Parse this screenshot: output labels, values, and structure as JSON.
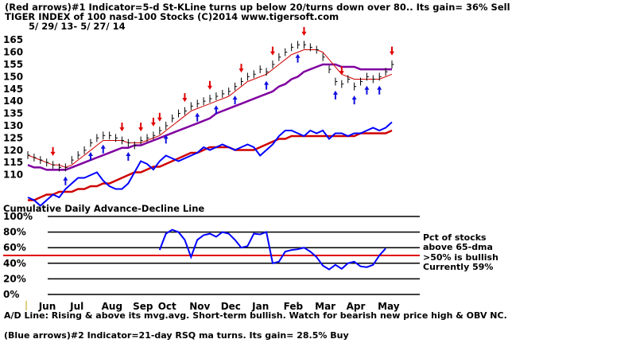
{
  "header": {
    "line1": "(Red arrows)#1 Indicator=5-d St-KLine turns up below 20/turns down over 80.. Its gain= 36% Sell",
    "line2": "TIGER INDEX of  100 nasd-100 Stocks  (C)2014  www.tigersoft.com",
    "line3": "5/ 29/ 13-  5/ 27/ 14"
  },
  "footer": {
    "line1": "A/D Line: Rising & above its mvg.avg. Short-term bullish. Watch for bearish new price high & OBV NC.",
    "line2": "(Blue arrows)#2 Indicator=21-day RSQ ma turns. Its gain= 28.5% Buy"
  },
  "colors": {
    "price": "#000000",
    "ma_short": "#d00000",
    "ma_long": "#8000a0",
    "ad_line": "#0000ff",
    "ad_ma": "#d00000",
    "pct": "#0000ff",
    "threshold": "#e00000",
    "sell_arrow": "#e00000",
    "buy_arrow": "#1010e0",
    "grid": "#000000"
  },
  "chart_data": [
    {
      "type": "line",
      "title": "TIGER INDEX of  100 nasd-100 Stocks  (C)2014  www.tigersoft.com",
      "ylim": [
        105,
        167
      ],
      "yticks": [
        110,
        115,
        120,
        125,
        130,
        135,
        140,
        145,
        150,
        155,
        160,
        165
      ],
      "grid": false,
      "series": [
        {
          "values": [
            118,
            117,
            116,
            115,
            114,
            113,
            113,
            116,
            118,
            120,
            123,
            125,
            126,
            126,
            125,
            124,
            123,
            122,
            124,
            125,
            126,
            128,
            130,
            133,
            135,
            136,
            138,
            139,
            140,
            141,
            142,
            143,
            144,
            146,
            148,
            150,
            151,
            153,
            152,
            155,
            158,
            160,
            162,
            163,
            163,
            162,
            161,
            158,
            153,
            148,
            147,
            149,
            146,
            148,
            150,
            149,
            150,
            152,
            155
          ]
        },
        {
          "values": [
            118,
            117,
            116,
            115,
            114,
            114,
            113,
            114,
            116,
            118,
            120,
            122,
            124,
            124,
            124,
            124,
            123,
            123,
            123,
            124,
            125,
            126,
            128,
            130,
            132,
            134,
            136,
            137,
            138,
            139,
            140,
            141,
            142,
            144,
            146,
            148,
            149,
            150,
            151,
            153,
            155,
            157,
            159,
            160,
            161,
            161,
            161,
            160,
            157,
            154,
            151,
            150,
            149,
            149,
            149,
            149,
            149,
            150,
            151
          ]
        },
        {
          "values": [
            114,
            113,
            113,
            112,
            112,
            112,
            112,
            113,
            114,
            115,
            116,
            117,
            118,
            119,
            120,
            121,
            121,
            122,
            122,
            123,
            124,
            125,
            126,
            127,
            128,
            129,
            130,
            131,
            132,
            133,
            135,
            136,
            137,
            138,
            139,
            140,
            141,
            142,
            143,
            144,
            146,
            147,
            149,
            150,
            152,
            153,
            154,
            155,
            155,
            155,
            154,
            154,
            154,
            153,
            153,
            153,
            153,
            153,
            153
          ]
        }
      ],
      "sell_arrows": [
        4,
        15,
        18,
        20,
        21,
        25,
        29,
        34,
        39,
        44,
        50,
        58
      ],
      "buy_arrows": [
        6,
        10,
        12,
        16,
        22,
        27,
        30,
        33,
        38,
        43,
        49,
        52,
        54,
        56
      ],
      "xlabel": ""
    },
    {
      "type": "line",
      "title": "Cumulative Daily Advance-Decline Line",
      "series": [
        {
          "values": [
            107,
            106,
            104,
            106,
            108,
            107,
            110,
            112,
            114,
            114,
            115,
            116,
            113,
            111,
            110,
            110,
            112,
            116,
            120,
            119,
            117,
            120,
            122,
            121,
            120,
            121,
            122,
            123,
            125,
            124,
            125,
            126,
            125,
            124,
            125,
            126,
            125,
            122,
            124,
            126,
            129,
            131,
            131,
            130,
            129,
            131,
            130,
            131,
            128,
            130,
            130,
            129,
            130,
            130,
            131,
            132,
            131,
            132,
            134
          ]
        },
        {
          "values": [
            106,
            106,
            107,
            108,
            108,
            109,
            109,
            109,
            110,
            110,
            111,
            111,
            112,
            112,
            113,
            114,
            115,
            116,
            116,
            117,
            118,
            118,
            119,
            120,
            121,
            122,
            123,
            123,
            124,
            125,
            125,
            125,
            125,
            124,
            124,
            124,
            124,
            125,
            126,
            127,
            128,
            128,
            129,
            129,
            129,
            129,
            129,
            129,
            129,
            129,
            129,
            129,
            129,
            130,
            130,
            130,
            130,
            130,
            131
          ]
        }
      ]
    },
    {
      "type": "line",
      "title": "",
      "ylim": [
        0,
        100
      ],
      "yticks": [
        0,
        20,
        40,
        60,
        80,
        100
      ],
      "ytick_labels": [
        "0%",
        "20%",
        "40%",
        "60%",
        "80%",
        "100%"
      ],
      "threshold": 50,
      "x_start_index": 21,
      "series": [
        {
          "values": [
            57,
            78,
            83,
            80,
            70,
            48,
            70,
            76,
            78,
            74,
            80,
            78,
            70,
            60,
            62,
            78,
            77,
            80,
            40,
            42,
            55,
            57,
            58,
            60,
            55,
            48,
            37,
            32,
            38,
            33,
            40,
            42,
            36,
            35,
            38,
            50,
            59
          ]
        }
      ],
      "legend_notes": [
        "Pct of stocks",
        "above 65-dma",
        ">50% is bullish",
        "Currently  59%"
      ],
      "months": [
        "Jun",
        "Jul",
        "Aug",
        "Sep",
        "Oct",
        "Nov",
        "Dec",
        "Jan",
        "Feb",
        "Mar",
        "Apr",
        "May"
      ],
      "month_index": [
        3,
        8,
        13,
        18,
        22,
        27,
        32,
        37,
        42,
        47,
        52,
        57
      ],
      "n_points": 59
    }
  ]
}
